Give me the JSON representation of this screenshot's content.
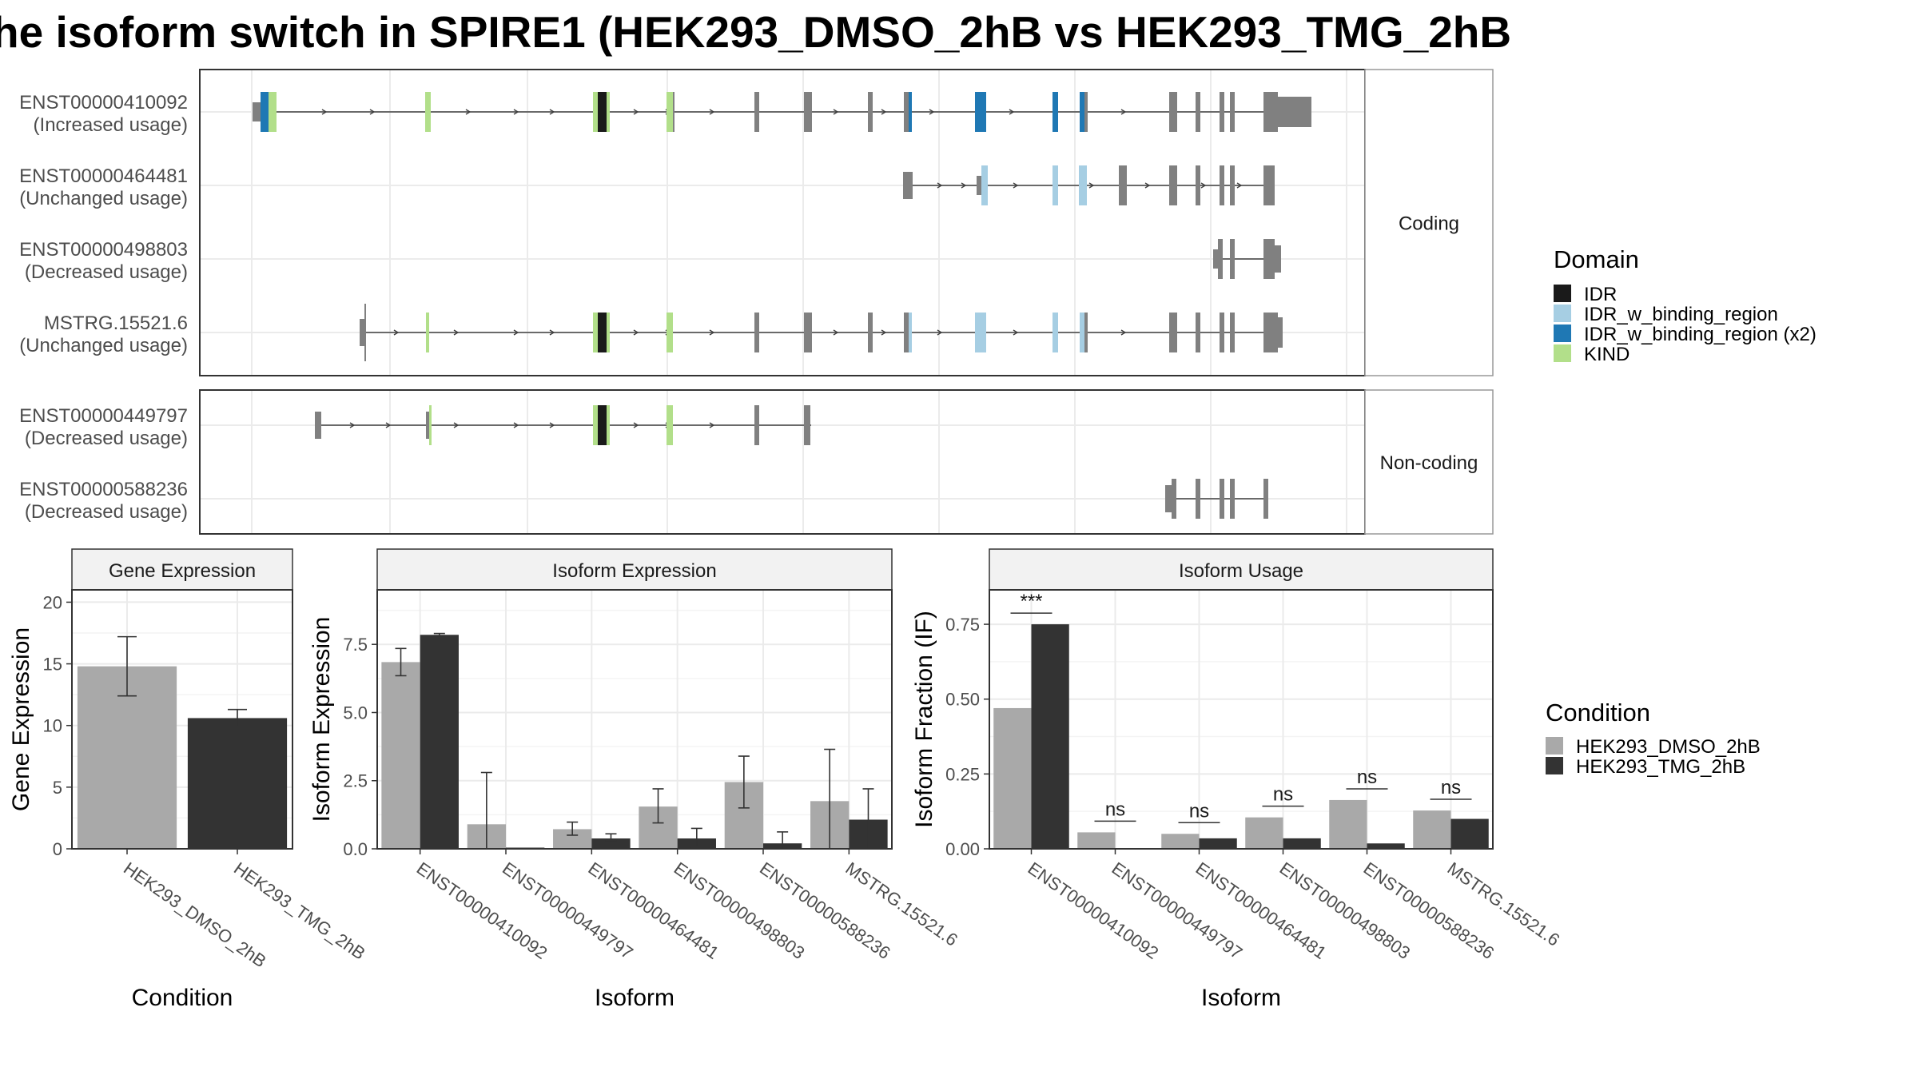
{
  "title": "he isoform switch in SPIRE1 (HEK293_DMSO_2hB vs HEK293_TMG_2hB",
  "colors": {
    "exon": "#808080",
    "IDR": "#1a1a1a",
    "IDR_w_binding_region": "#a6cee3",
    "IDR_w_binding_region_x2": "#1f78b4",
    "KIND": "#b2df8a",
    "dmso": "#a9a9a9",
    "tmg": "#333333",
    "panel_border": "#333333",
    "strip_fill": "#f2f2f2",
    "grid": "#ebebeb"
  },
  "structure": {
    "coding_label": "Coding",
    "noncoding_label": "Non-coding",
    "isoforms": [
      {
        "id": "ENST00000410092",
        "status": "(Increased usage)",
        "group": "coding"
      },
      {
        "id": "ENST00000464481",
        "status": "(Unchanged usage)",
        "group": "coding"
      },
      {
        "id": "ENST00000498803",
        "status": "(Decreased usage)",
        "group": "coding"
      },
      {
        "id": "MSTRG.15521.6",
        "status": "(Unchanged usage)",
        "group": "coding"
      },
      {
        "id": "ENST00000449797",
        "status": "(Decreased usage)",
        "group": "noncoding"
      },
      {
        "id": "ENST00000588236",
        "status": "(Decreased usage)",
        "group": "noncoding"
      }
    ]
  },
  "domain_legend": {
    "title": "Domain",
    "items": [
      {
        "label": "IDR",
        "color_key": "IDR"
      },
      {
        "label": "IDR_w_binding_region",
        "color_key": "IDR_w_binding_region"
      },
      {
        "label": "IDR_w_binding_region (x2)",
        "color_key": "IDR_w_binding_region_x2"
      },
      {
        "label": "KIND",
        "color_key": "KIND"
      }
    ]
  },
  "condition_legend": {
    "title": "Condition",
    "items": [
      {
        "label": "HEK293_DMSO_2hB",
        "color_key": "dmso"
      },
      {
        "label": "HEK293_TMG_2hB",
        "color_key": "tmg"
      }
    ]
  },
  "chart_data": [
    {
      "type": "bar",
      "title": "Gene Expression",
      "xlabel": "Condition",
      "ylabel": "Gene Expression",
      "ylim": [
        0,
        21
      ],
      "yticks": [
        0,
        5,
        10,
        15,
        20
      ],
      "categories": [
        "HEK293_DMSO_2hB",
        "HEK293_TMG_2hB"
      ],
      "values": [
        14.8,
        10.6
      ],
      "error_low": [
        12.4,
        9.9
      ],
      "error_high": [
        17.2,
        11.3
      ]
    },
    {
      "type": "bar",
      "title": "Isoform Expression",
      "xlabel": "Isoform",
      "ylabel": "Isoform Expression",
      "ylim": [
        0,
        9.5
      ],
      "yticks": [
        0.0,
        2.5,
        5.0,
        7.5
      ],
      "categories": [
        "ENST00000410092",
        "ENST00000449797",
        "ENST00000464481",
        "ENST00000498803",
        "ENST00000588236",
        "MSTRG.15521.6"
      ],
      "series": [
        {
          "name": "HEK293_DMSO_2hB",
          "values": [
            6.85,
            0.9,
            0.72,
            1.55,
            2.45,
            1.75
          ],
          "error_low": [
            6.35,
            0.0,
            0.5,
            0.95,
            1.5,
            0.0
          ],
          "error_high": [
            7.35,
            2.8,
            0.98,
            2.2,
            3.4,
            3.65
          ]
        },
        {
          "name": "HEK293_TMG_2hB",
          "values": [
            7.85,
            0.0,
            0.38,
            0.38,
            0.2,
            1.07
          ],
          "error_low": [
            7.8,
            0.0,
            0.3,
            0.05,
            0.0,
            0.0
          ],
          "error_high": [
            7.9,
            0.0,
            0.55,
            0.75,
            0.62,
            2.2
          ]
        }
      ]
    },
    {
      "type": "bar",
      "title": "Isoform Usage",
      "xlabel": "Isoform",
      "ylabel": "Isoform Fraction (IF)",
      "ylim": [
        0,
        0.865
      ],
      "yticks": [
        0.0,
        0.25,
        0.5,
        0.75
      ],
      "categories": [
        "ENST00000410092",
        "ENST00000449797",
        "ENST00000464481",
        "ENST00000498803",
        "ENST00000588236",
        "MSTRG.15521.6"
      ],
      "series": [
        {
          "name": "HEK293_DMSO_2hB",
          "values": [
            0.47,
            0.055,
            0.05,
            0.105,
            0.163,
            0.128
          ]
        },
        {
          "name": "HEK293_TMG_2hB",
          "values": [
            0.75,
            0.0,
            0.035,
            0.035,
            0.018,
            0.1
          ]
        }
      ],
      "significance": [
        "***",
        "ns",
        "ns",
        "ns",
        "ns",
        "ns"
      ]
    }
  ]
}
